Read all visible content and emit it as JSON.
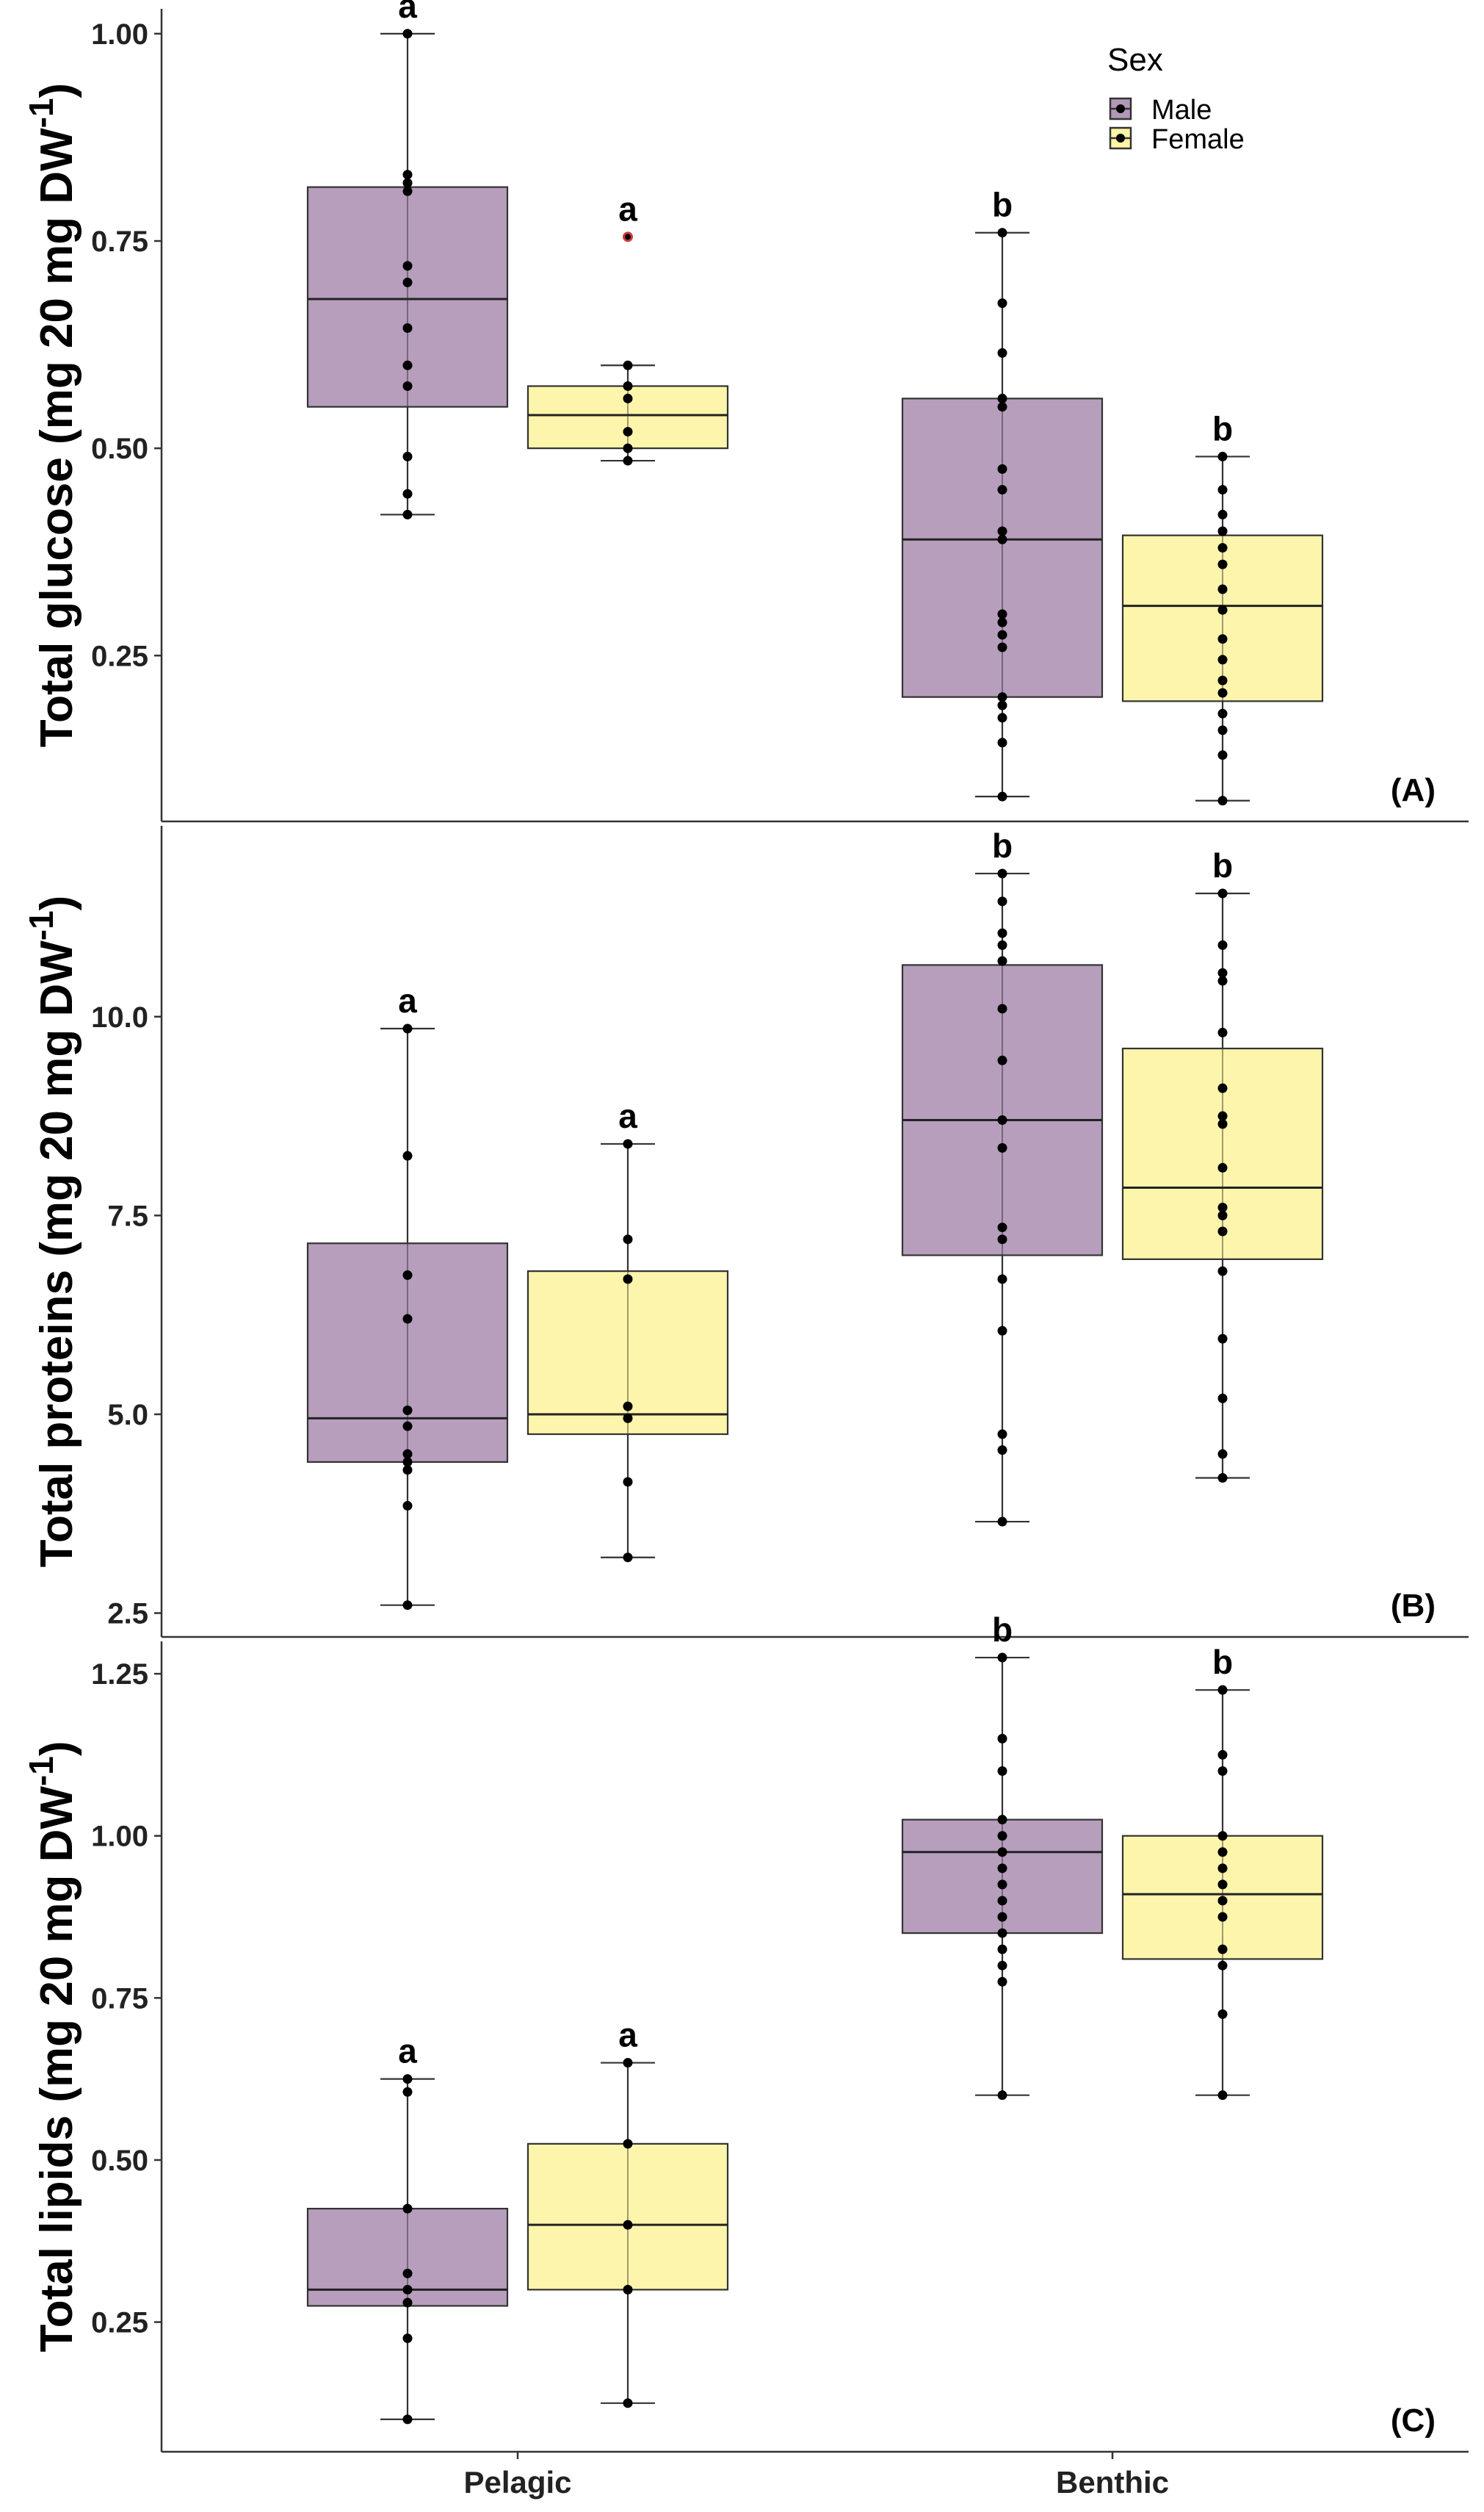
{
  "colors": {
    "male": "#b299b8",
    "female": "#fdf4a7",
    "point": "#000000",
    "outlier": "#d13b3b",
    "axis": "#333333"
  },
  "legend": {
    "title": "Sex",
    "entries": [
      {
        "label": "Male",
        "key": "male"
      },
      {
        "label": "Female",
        "key": "female"
      }
    ]
  },
  "chart_data": [
    {
      "type": "box",
      "panel_label": "(A)",
      "ylabel": "Total glucose (mg 20 mg DW",
      "ylabel_sup": "-1",
      "ylabel_close": ")",
      "ylim": [
        0.05,
        1.03
      ],
      "yticks": [
        0.25,
        0.5,
        0.75,
        1.0
      ],
      "ytick_labels": [
        "0.25",
        "0.50",
        "0.75",
        "1.00"
      ],
      "categories": [
        "Pelagic",
        "Benthic"
      ],
      "boxes": [
        {
          "group": "Pelagic",
          "sex": "male",
          "letter": "a",
          "whisker_low": 0.42,
          "q1": 0.55,
          "median": 0.68,
          "q3": 0.815,
          "whisker_high": 1.0,
          "points": [
            1.0,
            0.83,
            0.82,
            0.81,
            0.72,
            0.7,
            0.645,
            0.6,
            0.575,
            0.49,
            0.445,
            0.42
          ],
          "outliers": []
        },
        {
          "group": "Pelagic",
          "sex": "female",
          "letter": "a",
          "whisker_low": 0.485,
          "q1": 0.5,
          "median": 0.54,
          "q3": 0.575,
          "whisker_high": 0.6,
          "points": [
            0.6,
            0.575,
            0.56,
            0.52,
            0.5,
            0.485
          ],
          "outliers": [
            0.755
          ]
        },
        {
          "group": "Benthic",
          "sex": "male",
          "letter": "b",
          "whisker_low": 0.08,
          "q1": 0.2,
          "median": 0.39,
          "q3": 0.56,
          "whisker_high": 0.76,
          "points": [
            0.76,
            0.675,
            0.615,
            0.56,
            0.55,
            0.475,
            0.45,
            0.4,
            0.39,
            0.3,
            0.29,
            0.275,
            0.26,
            0.2,
            0.19,
            0.175,
            0.145,
            0.08
          ],
          "outliers": []
        },
        {
          "group": "Benthic",
          "sex": "female",
          "letter": "b",
          "whisker_low": 0.075,
          "q1": 0.195,
          "median": 0.31,
          "q3": 0.395,
          "whisker_high": 0.49,
          "points": [
            0.49,
            0.45,
            0.42,
            0.4,
            0.38,
            0.36,
            0.33,
            0.305,
            0.27,
            0.245,
            0.22,
            0.205,
            0.18,
            0.16,
            0.13,
            0.075
          ],
          "outliers": []
        }
      ]
    },
    {
      "type": "box",
      "panel_label": "(B)",
      "ylabel": "Total proteins (mg 20 mg DW",
      "ylabel_sup": "-1",
      "ylabel_close": ")",
      "ylim": [
        2.2,
        12.4
      ],
      "yticks": [
        2.5,
        5.0,
        7.5,
        10.0
      ],
      "ytick_labels": [
        "2.5",
        "5.0",
        "7.5",
        "10.0"
      ],
      "categories": [
        "Pelagic",
        "Benthic"
      ],
      "boxes": [
        {
          "group": "Pelagic",
          "sex": "male",
          "letter": "a",
          "whisker_low": 2.6,
          "q1": 4.4,
          "median": 4.95,
          "q3": 7.15,
          "whisker_high": 9.85,
          "points": [
            9.85,
            8.25,
            6.75,
            6.2,
            5.05,
            4.85,
            4.5,
            4.4,
            4.3,
            3.85,
            2.6
          ],
          "outliers": []
        },
        {
          "group": "Pelagic",
          "sex": "female",
          "letter": "a",
          "whisker_low": 3.2,
          "q1": 4.75,
          "median": 5.0,
          "q3": 6.8,
          "whisker_high": 8.4,
          "points": [
            8.4,
            7.2,
            6.7,
            5.1,
            4.95,
            4.15,
            3.2
          ],
          "outliers": []
        },
        {
          "group": "Benthic",
          "sex": "male",
          "letter": "b",
          "whisker_low": 3.65,
          "q1": 7.0,
          "median": 8.7,
          "q3": 10.65,
          "whisker_high": 11.8,
          "points": [
            11.8,
            11.45,
            11.05,
            10.9,
            10.7,
            10.1,
            9.45,
            8.7,
            8.35,
            7.35,
            7.2,
            6.7,
            6.05,
            4.75,
            4.55,
            3.65
          ],
          "outliers": []
        },
        {
          "group": "Benthic",
          "sex": "female",
          "letter": "b",
          "whisker_low": 4.2,
          "q1": 6.95,
          "median": 7.85,
          "q3": 9.6,
          "whisker_high": 11.55,
          "points": [
            11.55,
            10.9,
            10.55,
            10.45,
            9.8,
            9.1,
            8.75,
            8.65,
            8.1,
            7.6,
            7.5,
            7.3,
            6.8,
            5.95,
            5.2,
            4.5,
            4.2
          ],
          "outliers": []
        }
      ]
    },
    {
      "type": "box",
      "panel_label": "(C)",
      "ylabel": "Total lipids (mg 20 mg DW",
      "ylabel_sup": "-1",
      "ylabel_close": ")",
      "ylim": [
        0.05,
        1.3
      ],
      "yticks": [
        0.25,
        0.5,
        0.75,
        1.0,
        1.25
      ],
      "ytick_labels": [
        "0.25",
        "0.50",
        "0.75",
        "1.00",
        "1.25"
      ],
      "categories": [
        "Pelagic",
        "Benthic"
      ],
      "boxes": [
        {
          "group": "Pelagic",
          "sex": "male",
          "letter": "a",
          "whisker_low": 0.1,
          "q1": 0.275,
          "median": 0.3,
          "q3": 0.425,
          "whisker_high": 0.625,
          "points": [
            0.625,
            0.605,
            0.425,
            0.325,
            0.3,
            0.28,
            0.225,
            0.1
          ],
          "outliers": []
        },
        {
          "group": "Pelagic",
          "sex": "female",
          "letter": "a",
          "whisker_low": 0.125,
          "q1": 0.3,
          "median": 0.4,
          "q3": 0.525,
          "whisker_high": 0.65,
          "points": [
            0.65,
            0.525,
            0.4,
            0.3,
            0.125
          ],
          "outliers": []
        },
        {
          "group": "Benthic",
          "sex": "male",
          "letter": "b",
          "whisker_low": 0.6,
          "q1": 0.85,
          "median": 0.975,
          "q3": 1.025,
          "whisker_high": 1.275,
          "points": [
            1.275,
            1.15,
            1.1,
            1.025,
            1.0,
            0.975,
            0.95,
            0.925,
            0.9,
            0.875,
            0.85,
            0.825,
            0.8,
            0.775,
            0.6
          ],
          "outliers": []
        },
        {
          "group": "Benthic",
          "sex": "female",
          "letter": "b",
          "whisker_low": 0.6,
          "q1": 0.81,
          "median": 0.91,
          "q3": 1.0,
          "whisker_high": 1.225,
          "points": [
            1.225,
            1.125,
            1.1,
            1.0,
            0.975,
            0.95,
            0.925,
            0.9,
            0.875,
            0.825,
            0.8,
            0.725,
            0.6
          ],
          "outliers": []
        }
      ]
    }
  ]
}
